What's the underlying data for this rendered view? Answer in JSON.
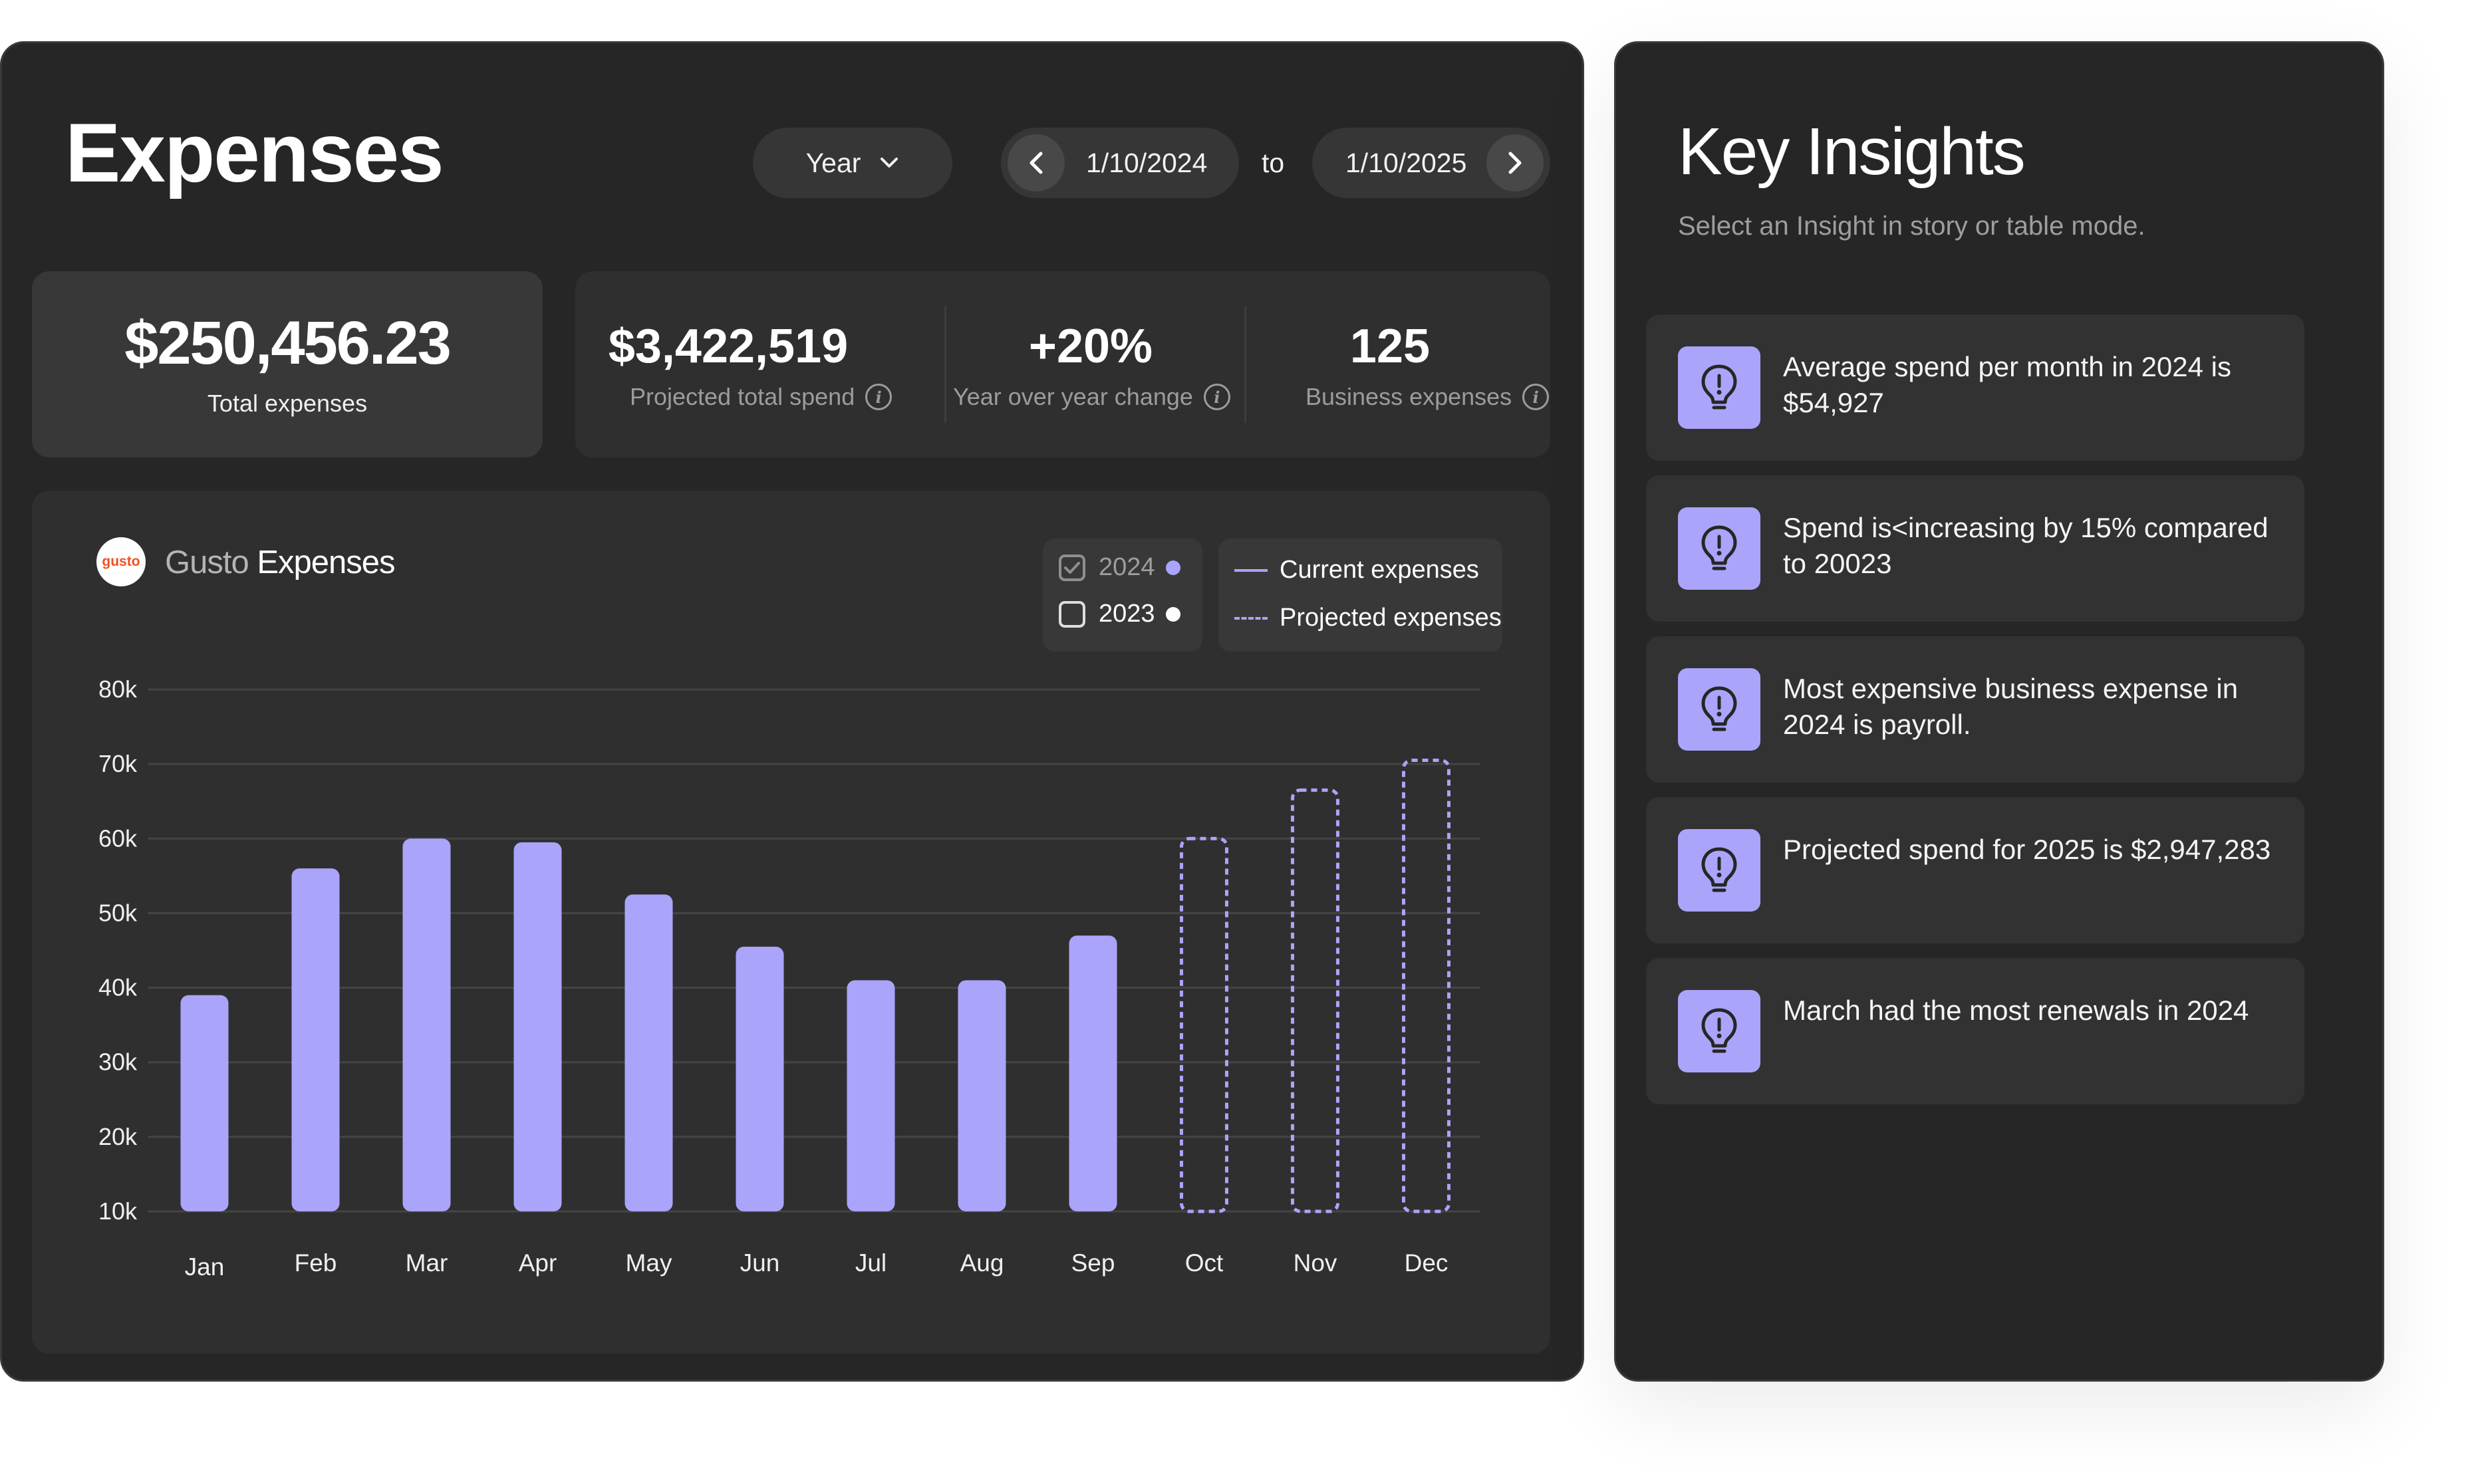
{
  "header": {
    "title": "Expenses",
    "period": "Year",
    "date_start": "1/10/2024",
    "date_to": "to",
    "date_end": "1/10/2025"
  },
  "summary": {
    "total_value": "$250,456.23",
    "total_label": "Total expenses",
    "stats": [
      {
        "value": "$3,422,519",
        "label": "Projected total spend"
      },
      {
        "value": "+20%",
        "label": "Year over year change"
      },
      {
        "value": "125",
        "label": "Business expenses"
      }
    ]
  },
  "chart_panel": {
    "logo_text": "gusto",
    "brand": "Gusto",
    "title": "Expenses",
    "year_legend": [
      {
        "label": "2024",
        "checked": true,
        "color": "#aba4fb"
      },
      {
        "label": "2023",
        "checked": false,
        "color": "#ffffff"
      }
    ],
    "line_legend": [
      {
        "label": "Current expenses",
        "style": "solid",
        "color": "#aba4fb"
      },
      {
        "label": "Projected expenses",
        "style": "dashed",
        "color": "#aba4fb"
      }
    ]
  },
  "chart_data": {
    "type": "bar",
    "categories": [
      "Jan",
      "Feb",
      "Mar",
      "Apr",
      "May",
      "Jun",
      "Jul",
      "Aug",
      "Sep",
      "Oct",
      "Nov",
      "Dec"
    ],
    "series": [
      {
        "name": "Current expenses",
        "values": [
          39000,
          56000,
          60000,
          59500,
          52500,
          45500,
          41000,
          41000,
          47000,
          null,
          null,
          null
        ]
      },
      {
        "name": "Projected expenses",
        "values": [
          null,
          null,
          null,
          null,
          null,
          null,
          null,
          null,
          null,
          60000,
          66500,
          70500
        ]
      }
    ],
    "yticks": [
      "10k",
      "20k",
      "30k",
      "40k",
      "50k",
      "60k",
      "70k",
      "80k"
    ],
    "ytick_values": [
      10000,
      20000,
      30000,
      40000,
      50000,
      60000,
      70000,
      80000
    ],
    "ylim": [
      10000,
      80000
    ],
    "grid": true,
    "legend_position": "top-right",
    "colors": {
      "bar": "#aba4fb",
      "projected": "#aba4fb",
      "grid": "#444444"
    }
  },
  "insights": {
    "title": "Key Insights",
    "subtitle": "Select an Insight in story or table mode.",
    "items": [
      {
        "text": "Average spend per month in 2024 is $54,927",
        "icon": "lightbulb-icon"
      },
      {
        "text": "Spend is<increasing by 15% compared to 20023",
        "icon": "lightbulb-icon"
      },
      {
        "text": "Most expensive business expense in 2024 is payroll.",
        "icon": "lightbulb-icon"
      },
      {
        "text": "Projected spend for 2025 is $2,947,283",
        "icon": "lightbulb-icon"
      },
      {
        "text": "March had the most renewals in 2024",
        "icon": "lightbulb-icon"
      }
    ]
  }
}
